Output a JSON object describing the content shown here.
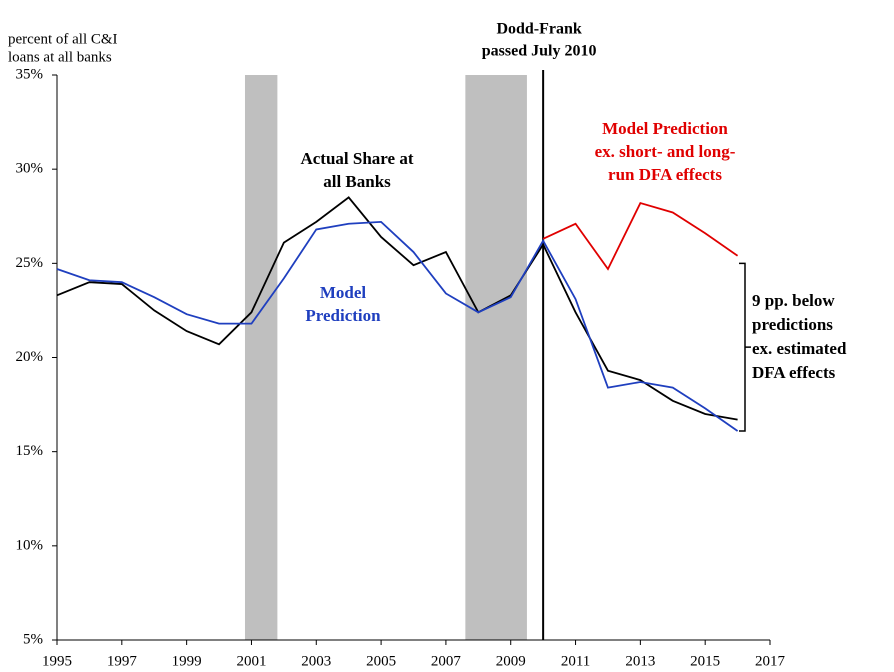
{
  "chart_data": {
    "type": "line",
    "y_axis_label": [
      "percent of all C&I",
      "loans at all banks"
    ],
    "x": [
      1995,
      1996,
      1997,
      1998,
      1999,
      2000,
      2001,
      2002,
      2003,
      2004,
      2005,
      2006,
      2007,
      2008,
      2009,
      2010,
      2011,
      2012,
      2013,
      2014,
      2015,
      2016
    ],
    "series": [
      {
        "name": "Actual Share at all Banks",
        "color": "#000000",
        "values": [
          23.3,
          24.0,
          23.9,
          22.5,
          21.4,
          20.7,
          22.4,
          26.1,
          27.2,
          28.5,
          26.4,
          24.9,
          25.6,
          22.4,
          23.3,
          26.0,
          22.4,
          19.3,
          18.8,
          17.7,
          17.0,
          16.7
        ]
      },
      {
        "name": "Model Prediction",
        "color": "#1f3fbf",
        "values": [
          24.7,
          24.1,
          24.0,
          23.2,
          22.3,
          21.8,
          21.8,
          24.2,
          26.8,
          27.1,
          27.2,
          25.6,
          23.4,
          22.4,
          23.2,
          26.2,
          23.1,
          18.4,
          18.7,
          18.4,
          17.3,
          16.1
        ]
      },
      {
        "name": "Model Prediction ex. short- and long-run DFA effects",
        "color": "#e00000",
        "values": [
          null,
          null,
          null,
          null,
          null,
          null,
          null,
          null,
          null,
          null,
          null,
          null,
          null,
          null,
          null,
          26.3,
          27.1,
          24.7,
          28.2,
          27.7,
          26.6,
          25.4
        ]
      }
    ],
    "series_label_lines": [
      [
        "Actual Share at",
        "all Banks"
      ],
      [
        "Model",
        "Prediction"
      ],
      [
        "Model Prediction",
        "ex. short- and long-",
        "run DFA effects"
      ]
    ],
    "recessions": [
      [
        2000.8,
        2001.8
      ],
      [
        2007.6,
        2009.5
      ]
    ],
    "event": {
      "x": 2010,
      "label_lines": [
        "Dodd-Frank",
        "passed July 2010"
      ]
    },
    "bracket_note": {
      "range": [
        25.0,
        16.1
      ],
      "lines": [
        "9 pp. below",
        "predictions",
        "ex. estimated",
        "DFA effects"
      ]
    },
    "xlim": [
      1995,
      2017
    ],
    "xticks": [
      1995,
      1997,
      1999,
      2001,
      2003,
      2005,
      2007,
      2009,
      2011,
      2013,
      2015,
      2017
    ],
    "ylim": [
      5,
      35
    ],
    "yticks": [
      {
        "value": 5,
        "label": "5%"
      },
      {
        "value": 10,
        "label": "10%"
      },
      {
        "value": 15,
        "label": "15%"
      },
      {
        "value": 20,
        "label": "20%"
      },
      {
        "value": 25,
        "label": "25%"
      },
      {
        "value": 30,
        "label": "30%"
      },
      {
        "value": 35,
        "label": "35%"
      }
    ]
  }
}
